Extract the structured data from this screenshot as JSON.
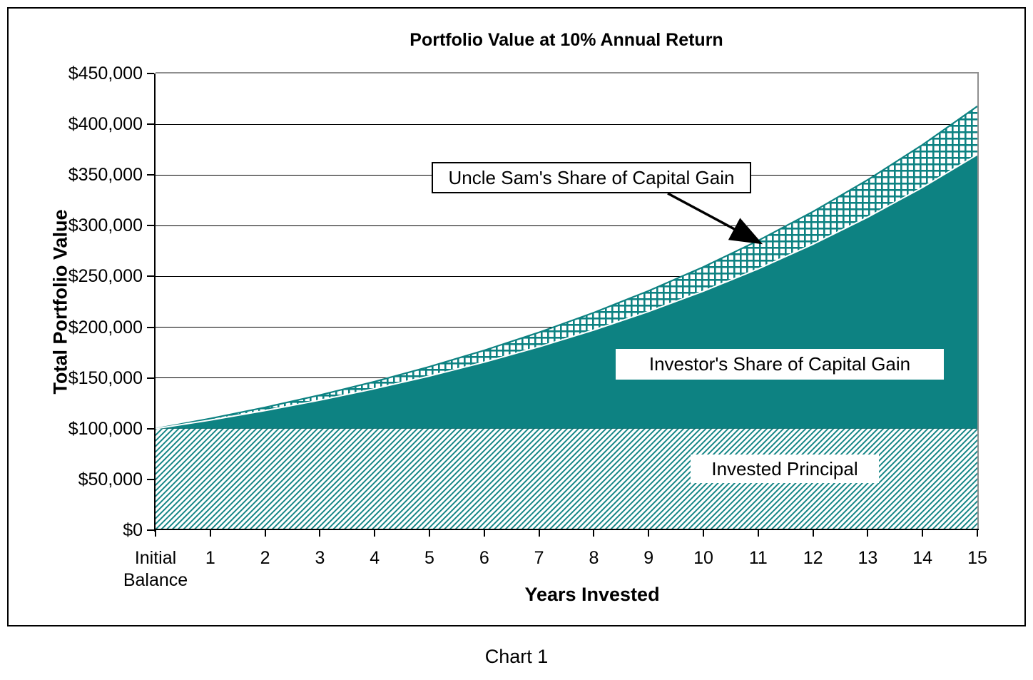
{
  "figure": {
    "title": "Portfolio Value at 10% Annual Return",
    "caption": "Chart 1"
  },
  "axes": {
    "y_title": "Total Portfolio Value",
    "x_title": "Years Invested",
    "y_tick_labels": [
      "$450,000",
      "$400,000",
      "$350,000",
      "$300,000",
      "$250,000",
      "$200,000",
      "$150,000",
      "$100,000",
      "$50,000",
      "$0"
    ],
    "x_tick_labels": [
      "Initial\nBalance",
      "1",
      "2",
      "3",
      "4",
      "5",
      "6",
      "7",
      "8",
      "9",
      "10",
      "11",
      "12",
      "13",
      "14",
      "15"
    ]
  },
  "annotations": {
    "uncle_sam_label": "Uncle Sam's Share of Capital Gain",
    "investor_label": "Investor's Share of Capital Gain",
    "principal_label": "Invested Principal"
  },
  "colors": {
    "area_teal": "#0d8282",
    "frame_gray": "#8f8f8f",
    "axis_black": "#000000",
    "annotation_bg": "#ffffff",
    "annotation_border": "#000000",
    "background": "#ffffff"
  },
  "chart_data": {
    "type": "area",
    "title": "Portfolio Value at 10% Annual Return",
    "xlabel": "Years Invested",
    "ylabel": "Total Portfolio Value",
    "x_categories": [
      "Initial Balance",
      "1",
      "2",
      "3",
      "4",
      "5",
      "6",
      "7",
      "8",
      "9",
      "10",
      "11",
      "12",
      "13",
      "14",
      "15"
    ],
    "ylim": [
      0,
      450000
    ],
    "y_tick_step": 50000,
    "grid": true,
    "legend": "none (labeled inline with callout boxes)",
    "stacking_note": "values are cumulative band tops (total portfolio value at the top edge of each band)",
    "series": [
      {
        "name": "Invested Principal",
        "style": "diagonal-hatch",
        "values": [
          100000,
          100000,
          100000,
          100000,
          100000,
          100000,
          100000,
          100000,
          100000,
          100000,
          100000,
          100000,
          100000,
          100000,
          100000,
          100000
        ]
      },
      {
        "name": "Investor's Share of Capital Gain",
        "style": "solid",
        "values": [
          100000,
          108500,
          117850,
          128135,
          139449,
          151893,
          165583,
          180641,
          197205,
          215426,
          235468,
          257515,
          281767,
          308443,
          337788,
          370066
        ]
      },
      {
        "name": "Uncle Sam's Share of Capital Gain",
        "style": "crosshatch",
        "values": [
          100000,
          110000,
          121000,
          133100,
          146410,
          161051,
          177156,
          194872,
          214359,
          235795,
          259374,
          285312,
          313843,
          345227,
          379750,
          417725
        ]
      }
    ]
  }
}
